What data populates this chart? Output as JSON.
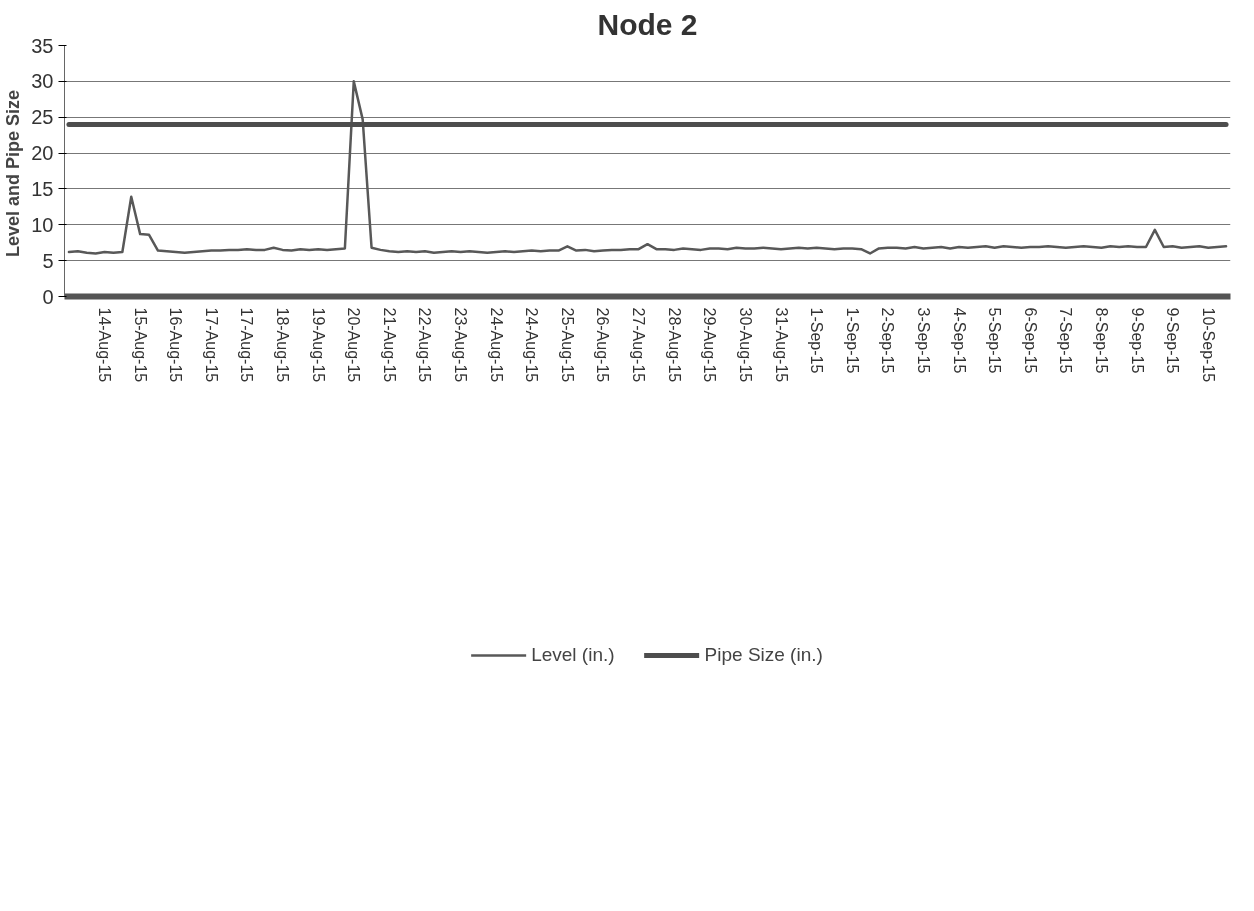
{
  "chart_data": {
    "type": "line",
    "title": "Node 2",
    "ylabel": "Level  and Pipe Size",
    "ylim": [
      0,
      35
    ],
    "yticks": [
      0,
      5,
      10,
      15,
      20,
      25,
      30,
      35
    ],
    "categories": [
      null,
      null,
      null,
      null,
      "14-Aug-15",
      null,
      null,
      null,
      "15-Aug-15",
      null,
      null,
      null,
      "16-Aug-15",
      null,
      null,
      null,
      "17-Aug-15",
      null,
      null,
      null,
      "17-Aug-15",
      null,
      null,
      null,
      "18-Aug-15",
      null,
      null,
      null,
      "19-Aug-15",
      null,
      null,
      null,
      "20-Aug-15",
      null,
      null,
      null,
      "21-Aug-15",
      null,
      null,
      null,
      "22-Aug-15",
      null,
      null,
      null,
      "23-Aug-15",
      null,
      null,
      null,
      "24-Aug-15",
      null,
      null,
      null,
      "24-Aug-15",
      null,
      null,
      null,
      "25-Aug-15",
      null,
      null,
      null,
      "26-Aug-15",
      null,
      null,
      null,
      "27-Aug-15",
      null,
      null,
      null,
      "28-Aug-15",
      null,
      null,
      null,
      "29-Aug-15",
      null,
      null,
      null,
      "30-Aug-15",
      null,
      null,
      null,
      "31-Aug-15",
      null,
      null,
      null,
      "1-Sep-15",
      null,
      null,
      null,
      "1-Sep-15",
      null,
      null,
      null,
      "2-Sep-15",
      null,
      null,
      null,
      "3-Sep-15",
      null,
      null,
      null,
      "4-Sep-15",
      null,
      null,
      null,
      "5-Sep-15",
      null,
      null,
      null,
      "6-Sep-15",
      null,
      null,
      null,
      "7-Sep-15",
      null,
      null,
      null,
      "8-Sep-15",
      null,
      null,
      null,
      "9-Sep-15",
      null,
      null,
      null,
      "9-Sep-15",
      null,
      null,
      null,
      "10-Sep-15",
      null,
      null
    ],
    "grid": "y",
    "legend": "bottom",
    "series": [
      {
        "name": "Level (in.)",
        "color": "#585858",
        "values": [
          6.2,
          6.3,
          6.1,
          6.0,
          6.2,
          6.1,
          6.2,
          13.9,
          8.7,
          8.6,
          6.4,
          6.3,
          6.2,
          6.1,
          6.2,
          6.3,
          6.4,
          6.4,
          6.5,
          6.5,
          6.6,
          6.5,
          6.5,
          6.8,
          6.5,
          6.4,
          6.6,
          6.5,
          6.6,
          6.5,
          6.6,
          6.7,
          30.0,
          24.7,
          6.8,
          6.5,
          6.3,
          6.2,
          6.3,
          6.2,
          6.3,
          6.1,
          6.2,
          6.3,
          6.2,
          6.3,
          6.2,
          6.1,
          6.2,
          6.3,
          6.2,
          6.3,
          6.4,
          6.3,
          6.4,
          6.4,
          7.0,
          6.4,
          6.5,
          6.3,
          6.4,
          6.5,
          6.5,
          6.6,
          6.6,
          7.3,
          6.6,
          6.6,
          6.5,
          6.7,
          6.6,
          6.5,
          6.7,
          6.7,
          6.6,
          6.8,
          6.7,
          6.7,
          6.8,
          6.7,
          6.6,
          6.7,
          6.8,
          6.7,
          6.8,
          6.7,
          6.6,
          6.7,
          6.7,
          6.6,
          6.0,
          6.7,
          6.8,
          6.8,
          6.7,
          6.9,
          6.7,
          6.8,
          6.9,
          6.7,
          6.9,
          6.8,
          6.9,
          7.0,
          6.8,
          7.0,
          6.9,
          6.8,
          6.9,
          6.9,
          7.0,
          6.9,
          6.8,
          6.9,
          7.0,
          6.9,
          6.8,
          7.0,
          6.9,
          7.0,
          6.9,
          6.9,
          9.3,
          6.9,
          7.0,
          6.8,
          6.9,
          7.0,
          6.8,
          6.9,
          7.0
        ]
      },
      {
        "name": "Pipe Size (in.)",
        "color": "#4d4d4d",
        "values": [
          24,
          24,
          24,
          24,
          24,
          24,
          24,
          24,
          24,
          24,
          24,
          24,
          24,
          24,
          24,
          24,
          24,
          24,
          24,
          24,
          24,
          24,
          24,
          24,
          24,
          24,
          24,
          24,
          24,
          24,
          24,
          24,
          24,
          24,
          24,
          24,
          24,
          24,
          24,
          24,
          24,
          24,
          24,
          24,
          24,
          24,
          24,
          24,
          24,
          24,
          24,
          24,
          24,
          24,
          24,
          24,
          24,
          24,
          24,
          24,
          24,
          24,
          24,
          24,
          24,
          24,
          24,
          24,
          24,
          24,
          24,
          24,
          24,
          24,
          24,
          24,
          24,
          24,
          24,
          24,
          24,
          24,
          24,
          24,
          24,
          24,
          24,
          24,
          24,
          24,
          24,
          24,
          24,
          24,
          24,
          24,
          24,
          24,
          24,
          24,
          24,
          24,
          24,
          24,
          24,
          24,
          24,
          24,
          24,
          24,
          24,
          24,
          24,
          24,
          24,
          24,
          24,
          24,
          24,
          24,
          24,
          24,
          24,
          24,
          24,
          24,
          24,
          24,
          24,
          24,
          24
        ]
      }
    ]
  }
}
